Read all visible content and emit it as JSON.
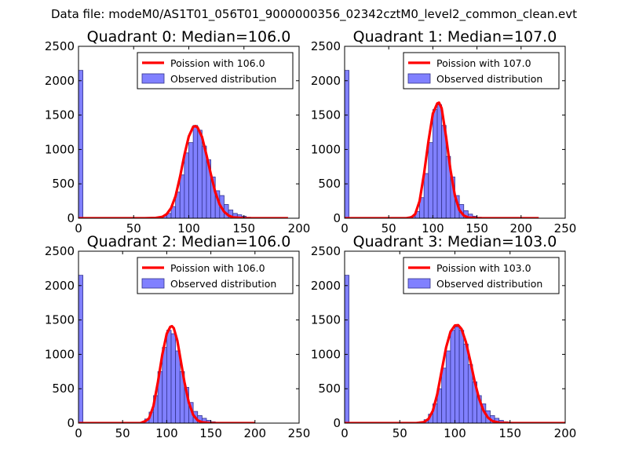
{
  "figure": {
    "suptitle": "Data file: modeM0/AS1T01_056T01_9000000356_02342cztM0_level2_common_clean.evt",
    "colors": {
      "bar_fill": "#8080ff",
      "bar_edge": "#33338c",
      "poisson_line": "#ff0000",
      "axes": "#000000",
      "background": "#ffffff"
    }
  },
  "chart_data": [
    {
      "type": "bar",
      "quadrant": 0,
      "title": "Quadrant 0: Median=106.0",
      "xlim": [
        0,
        200
      ],
      "ylim": [
        0,
        2500
      ],
      "xticks": [
        "0",
        "50",
        "100",
        "150",
        "200"
      ],
      "yticks": [
        "0",
        "500",
        "1000",
        "1500",
        "2000",
        "2500"
      ],
      "bin_width": 4,
      "legend": {
        "position": "top-right",
        "entries": [
          "Poission with 106.0",
          "Observed distribution"
        ]
      },
      "observed_bins": [
        {
          "x0": 0,
          "v": 2150
        },
        {
          "x0": 72,
          "v": 15
        },
        {
          "x0": 76,
          "v": 35
        },
        {
          "x0": 80,
          "v": 70
        },
        {
          "x0": 84,
          "v": 170
        },
        {
          "x0": 88,
          "v": 380
        },
        {
          "x0": 92,
          "v": 630
        },
        {
          "x0": 96,
          "v": 950
        },
        {
          "x0": 100,
          "v": 1100
        },
        {
          "x0": 104,
          "v": 1350
        },
        {
          "x0": 108,
          "v": 1280
        },
        {
          "x0": 112,
          "v": 1050
        },
        {
          "x0": 116,
          "v": 850
        },
        {
          "x0": 120,
          "v": 600
        },
        {
          "x0": 124,
          "v": 400
        },
        {
          "x0": 128,
          "v": 330
        },
        {
          "x0": 132,
          "v": 200
        },
        {
          "x0": 136,
          "v": 120
        },
        {
          "x0": 140,
          "v": 70
        },
        {
          "x0": 144,
          "v": 50
        },
        {
          "x0": 148,
          "v": 30
        },
        {
          "x0": 152,
          "v": 15
        }
      ],
      "poisson_curve": {
        "label": "Poission with 106.0",
        "x": [
          0,
          60,
          70,
          76,
          80,
          84,
          88,
          92,
          96,
          100,
          104,
          106,
          108,
          112,
          116,
          120,
          124,
          128,
          132,
          136,
          140,
          150,
          160,
          190
        ],
        "y": [
          0,
          0,
          5,
          20,
          60,
          150,
          320,
          600,
          920,
          1190,
          1330,
          1340,
          1320,
          1180,
          920,
          640,
          380,
          200,
          95,
          40,
          12,
          2,
          0,
          0
        ]
      }
    },
    {
      "type": "bar",
      "quadrant": 1,
      "title": "Quadrant 1: Median=107.0",
      "xlim": [
        0,
        250
      ],
      "ylim": [
        0,
        2500
      ],
      "xticks": [
        "0",
        "50",
        "100",
        "150",
        "200",
        "250"
      ],
      "yticks": [
        "0",
        "500",
        "1000",
        "1500",
        "2000",
        "2500"
      ],
      "bin_width": 5,
      "legend": {
        "position": "top-right",
        "entries": [
          "Poission with 107.0",
          "Observed distribution"
        ]
      },
      "observed_bins": [
        {
          "x0": 0,
          "v": 2150
        },
        {
          "x0": 75,
          "v": 30
        },
        {
          "x0": 80,
          "v": 100
        },
        {
          "x0": 85,
          "v": 300
        },
        {
          "x0": 90,
          "v": 650
        },
        {
          "x0": 95,
          "v": 1100
        },
        {
          "x0": 100,
          "v": 1580
        },
        {
          "x0": 105,
          "v": 1650
        },
        {
          "x0": 110,
          "v": 1350
        },
        {
          "x0": 115,
          "v": 900
        },
        {
          "x0": 120,
          "v": 600
        },
        {
          "x0": 125,
          "v": 330
        },
        {
          "x0": 130,
          "v": 200
        },
        {
          "x0": 135,
          "v": 110
        },
        {
          "x0": 140,
          "v": 60
        },
        {
          "x0": 145,
          "v": 30
        },
        {
          "x0": 150,
          "v": 15
        }
      ],
      "poisson_curve": {
        "label": "Poission with 107.0",
        "x": [
          0,
          70,
          76,
          80,
          85,
          90,
          95,
          100,
          105,
          107,
          110,
          115,
          120,
          125,
          130,
          135,
          140,
          150,
          160,
          220
        ],
        "y": [
          0,
          0,
          15,
          60,
          250,
          650,
          1120,
          1520,
          1670,
          1680,
          1600,
          1180,
          700,
          330,
          120,
          40,
          10,
          2,
          0,
          0
        ]
      }
    },
    {
      "type": "bar",
      "quadrant": 2,
      "title": "Quadrant 2: Median=106.0",
      "xlim": [
        0,
        250
      ],
      "ylim": [
        0,
        2500
      ],
      "xticks": [
        "0",
        "50",
        "100",
        "150",
        "200",
        "250"
      ],
      "yticks": [
        "0",
        "500",
        "1000",
        "1500",
        "2000",
        "2500"
      ],
      "bin_width": 5,
      "legend": {
        "position": "top-right",
        "entries": [
          "Poission with 106.0",
          "Observed distribution"
        ]
      },
      "observed_bins": [
        {
          "x0": 0,
          "v": 2150
        },
        {
          "x0": 75,
          "v": 60
        },
        {
          "x0": 80,
          "v": 160
        },
        {
          "x0": 85,
          "v": 400
        },
        {
          "x0": 90,
          "v": 750
        },
        {
          "x0": 95,
          "v": 1100
        },
        {
          "x0": 100,
          "v": 1350
        },
        {
          "x0": 105,
          "v": 1300
        },
        {
          "x0": 110,
          "v": 1050
        },
        {
          "x0": 115,
          "v": 750
        },
        {
          "x0": 120,
          "v": 520
        },
        {
          "x0": 125,
          "v": 300
        },
        {
          "x0": 130,
          "v": 170
        },
        {
          "x0": 135,
          "v": 110
        },
        {
          "x0": 140,
          "v": 70
        },
        {
          "x0": 145,
          "v": 40
        },
        {
          "x0": 150,
          "v": 20
        }
      ],
      "poisson_curve": {
        "label": "Poission with 106.0",
        "x": [
          0,
          70,
          76,
          80,
          85,
          90,
          95,
          100,
          104,
          106,
          108,
          112,
          116,
          120,
          125,
          130,
          135,
          140,
          150,
          160,
          200
        ],
        "y": [
          0,
          0,
          30,
          70,
          250,
          600,
          1000,
          1300,
          1400,
          1410,
          1380,
          1200,
          900,
          600,
          300,
          120,
          40,
          12,
          2,
          0,
          0
        ]
      }
    },
    {
      "type": "bar",
      "quadrant": 3,
      "title": "Quadrant 3: Median=103.0",
      "xlim": [
        0,
        200
      ],
      "ylim": [
        0,
        2500
      ],
      "xticks": [
        "0",
        "50",
        "100",
        "150",
        "200"
      ],
      "yticks": [
        "0",
        "500",
        "1000",
        "1500",
        "2000",
        "2500"
      ],
      "bin_width": 4,
      "legend": {
        "position": "top-right",
        "entries": [
          "Poission with 103.0",
          "Observed distribution"
        ]
      },
      "observed_bins": [
        {
          "x0": 0,
          "v": 2150
        },
        {
          "x0": 68,
          "v": 20
        },
        {
          "x0": 72,
          "v": 50
        },
        {
          "x0": 76,
          "v": 130
        },
        {
          "x0": 80,
          "v": 280
        },
        {
          "x0": 84,
          "v": 500
        },
        {
          "x0": 88,
          "v": 800
        },
        {
          "x0": 92,
          "v": 1050
        },
        {
          "x0": 96,
          "v": 1350
        },
        {
          "x0": 100,
          "v": 1400
        },
        {
          "x0": 104,
          "v": 1350
        },
        {
          "x0": 108,
          "v": 1150
        },
        {
          "x0": 112,
          "v": 850
        },
        {
          "x0": 116,
          "v": 600
        },
        {
          "x0": 120,
          "v": 400
        },
        {
          "x0": 124,
          "v": 280
        },
        {
          "x0": 128,
          "v": 180
        },
        {
          "x0": 132,
          "v": 110
        },
        {
          "x0": 136,
          "v": 70
        },
        {
          "x0": 140,
          "v": 40
        },
        {
          "x0": 144,
          "v": 20
        }
      ],
      "poisson_curve": {
        "label": "Poission with 103.0",
        "x": [
          0,
          65,
          72,
          76,
          80,
          84,
          88,
          92,
          96,
          100,
          103,
          106,
          110,
          114,
          118,
          122,
          126,
          130,
          134,
          140,
          150,
          160,
          200
        ],
        "y": [
          0,
          0,
          15,
          60,
          180,
          420,
          760,
          1100,
          1330,
          1420,
          1425,
          1370,
          1180,
          900,
          600,
          350,
          180,
          80,
          30,
          8,
          1,
          0,
          0
        ]
      }
    }
  ]
}
